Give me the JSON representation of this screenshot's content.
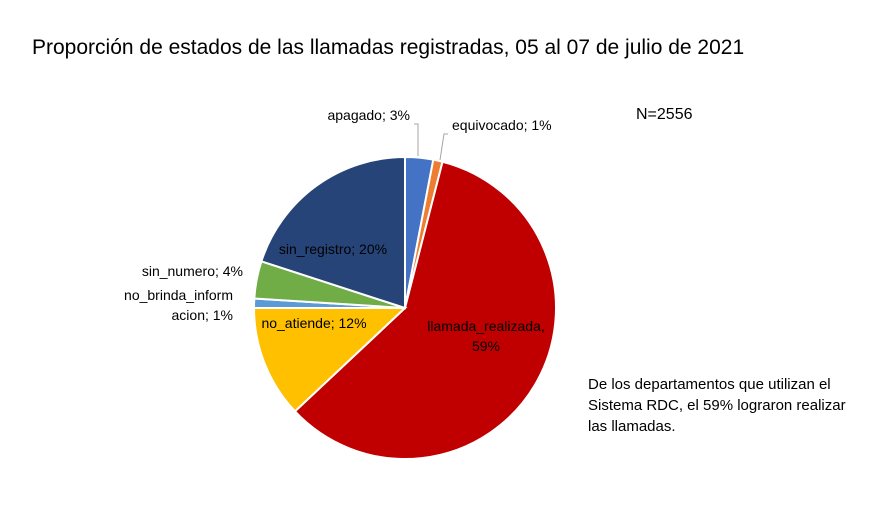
{
  "chart_data": {
    "type": "pie",
    "title": "Proporción de estados de las llamadas registradas, 05 al 07 de julio de 2021",
    "annotation": "N=2556",
    "note": "De los departamentos que utilizan el Sistema RDC, el 59% lograron realizar las llamadas.",
    "slices": [
      {
        "name": "apagado",
        "value": 3,
        "color": "#4472C4",
        "label_lines": [
          "apagado; 3%"
        ]
      },
      {
        "name": "equivocado",
        "value": 1,
        "color": "#ED7D31",
        "label_lines": [
          "equivocado; 1%"
        ]
      },
      {
        "name": "llamada_realizada",
        "value": 59,
        "color": "#C00000",
        "label_lines": [
          "llamada_realizada,",
          "59%"
        ]
      },
      {
        "name": "no_atiende",
        "value": 12,
        "color": "#FFC000",
        "label_lines": [
          "no_atiende; 12%"
        ]
      },
      {
        "name": "no_brinda_informacion",
        "value": 1,
        "color": "#5B9BD5",
        "label_lines": [
          "no_brinda_inform",
          "acion; 1%"
        ]
      },
      {
        "name": "sin_numero",
        "value": 4,
        "color": "#70AD47",
        "label_lines": [
          "sin_numero; 4%"
        ]
      },
      {
        "name": "sin_registro",
        "value": 20,
        "color": "#264478",
        "label_lines": [
          "sin_registro; 20%"
        ]
      }
    ]
  }
}
